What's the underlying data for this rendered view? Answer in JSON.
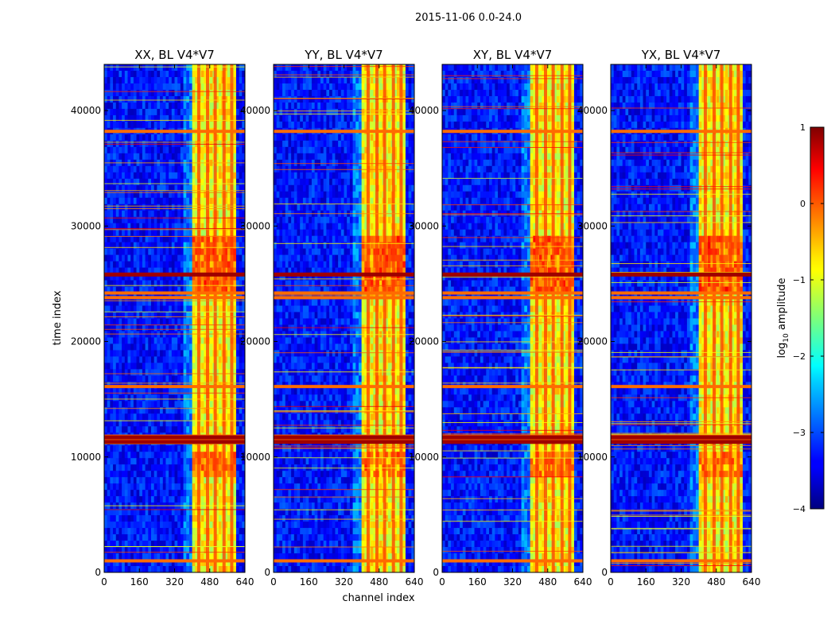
{
  "chart_data": {
    "type": "heatmap",
    "suptitle": "2015-11-06 0.0-24.0",
    "xlabel": "channel index",
    "ylabel": "time index",
    "xlim": [
      0,
      640
    ],
    "ylim": [
      0,
      44000
    ],
    "xticks": [
      0,
      160,
      320,
      480,
      640
    ],
    "yticks": [
      0,
      10000,
      20000,
      30000,
      40000
    ],
    "panels": [
      {
        "id": "xx",
        "title": "XX, BL V4*V7"
      },
      {
        "id": "yy",
        "title": "YY, BL V4*V7"
      },
      {
        "id": "xy",
        "title": "XY, BL V4*V7"
      },
      {
        "id": "yx",
        "title": "YX, BL V4*V7"
      }
    ],
    "colorbar": {
      "label": "log",
      "label_subscript": "10",
      "label_rest": " amplitude",
      "range": [
        -4,
        1
      ],
      "ticks": [
        1,
        0,
        -1,
        -2,
        -3,
        -4
      ],
      "tick_labels": [
        "1",
        "0",
        "−1",
        "−2",
        "−3",
        "−4"
      ],
      "colormap": "jet"
    },
    "features": {
      "bright_band_channels": [
        405,
        600
      ],
      "bright_band_value": -0.9,
      "background_value": -3.3,
      "bright_rows_time": [
        1000,
        11400,
        11800,
        16100,
        23800,
        24200,
        38200
      ],
      "saturated_rows_time": [
        11300,
        11700,
        25800
      ],
      "channel_stripes": [
        430,
        470,
        505,
        545,
        580
      ]
    }
  }
}
